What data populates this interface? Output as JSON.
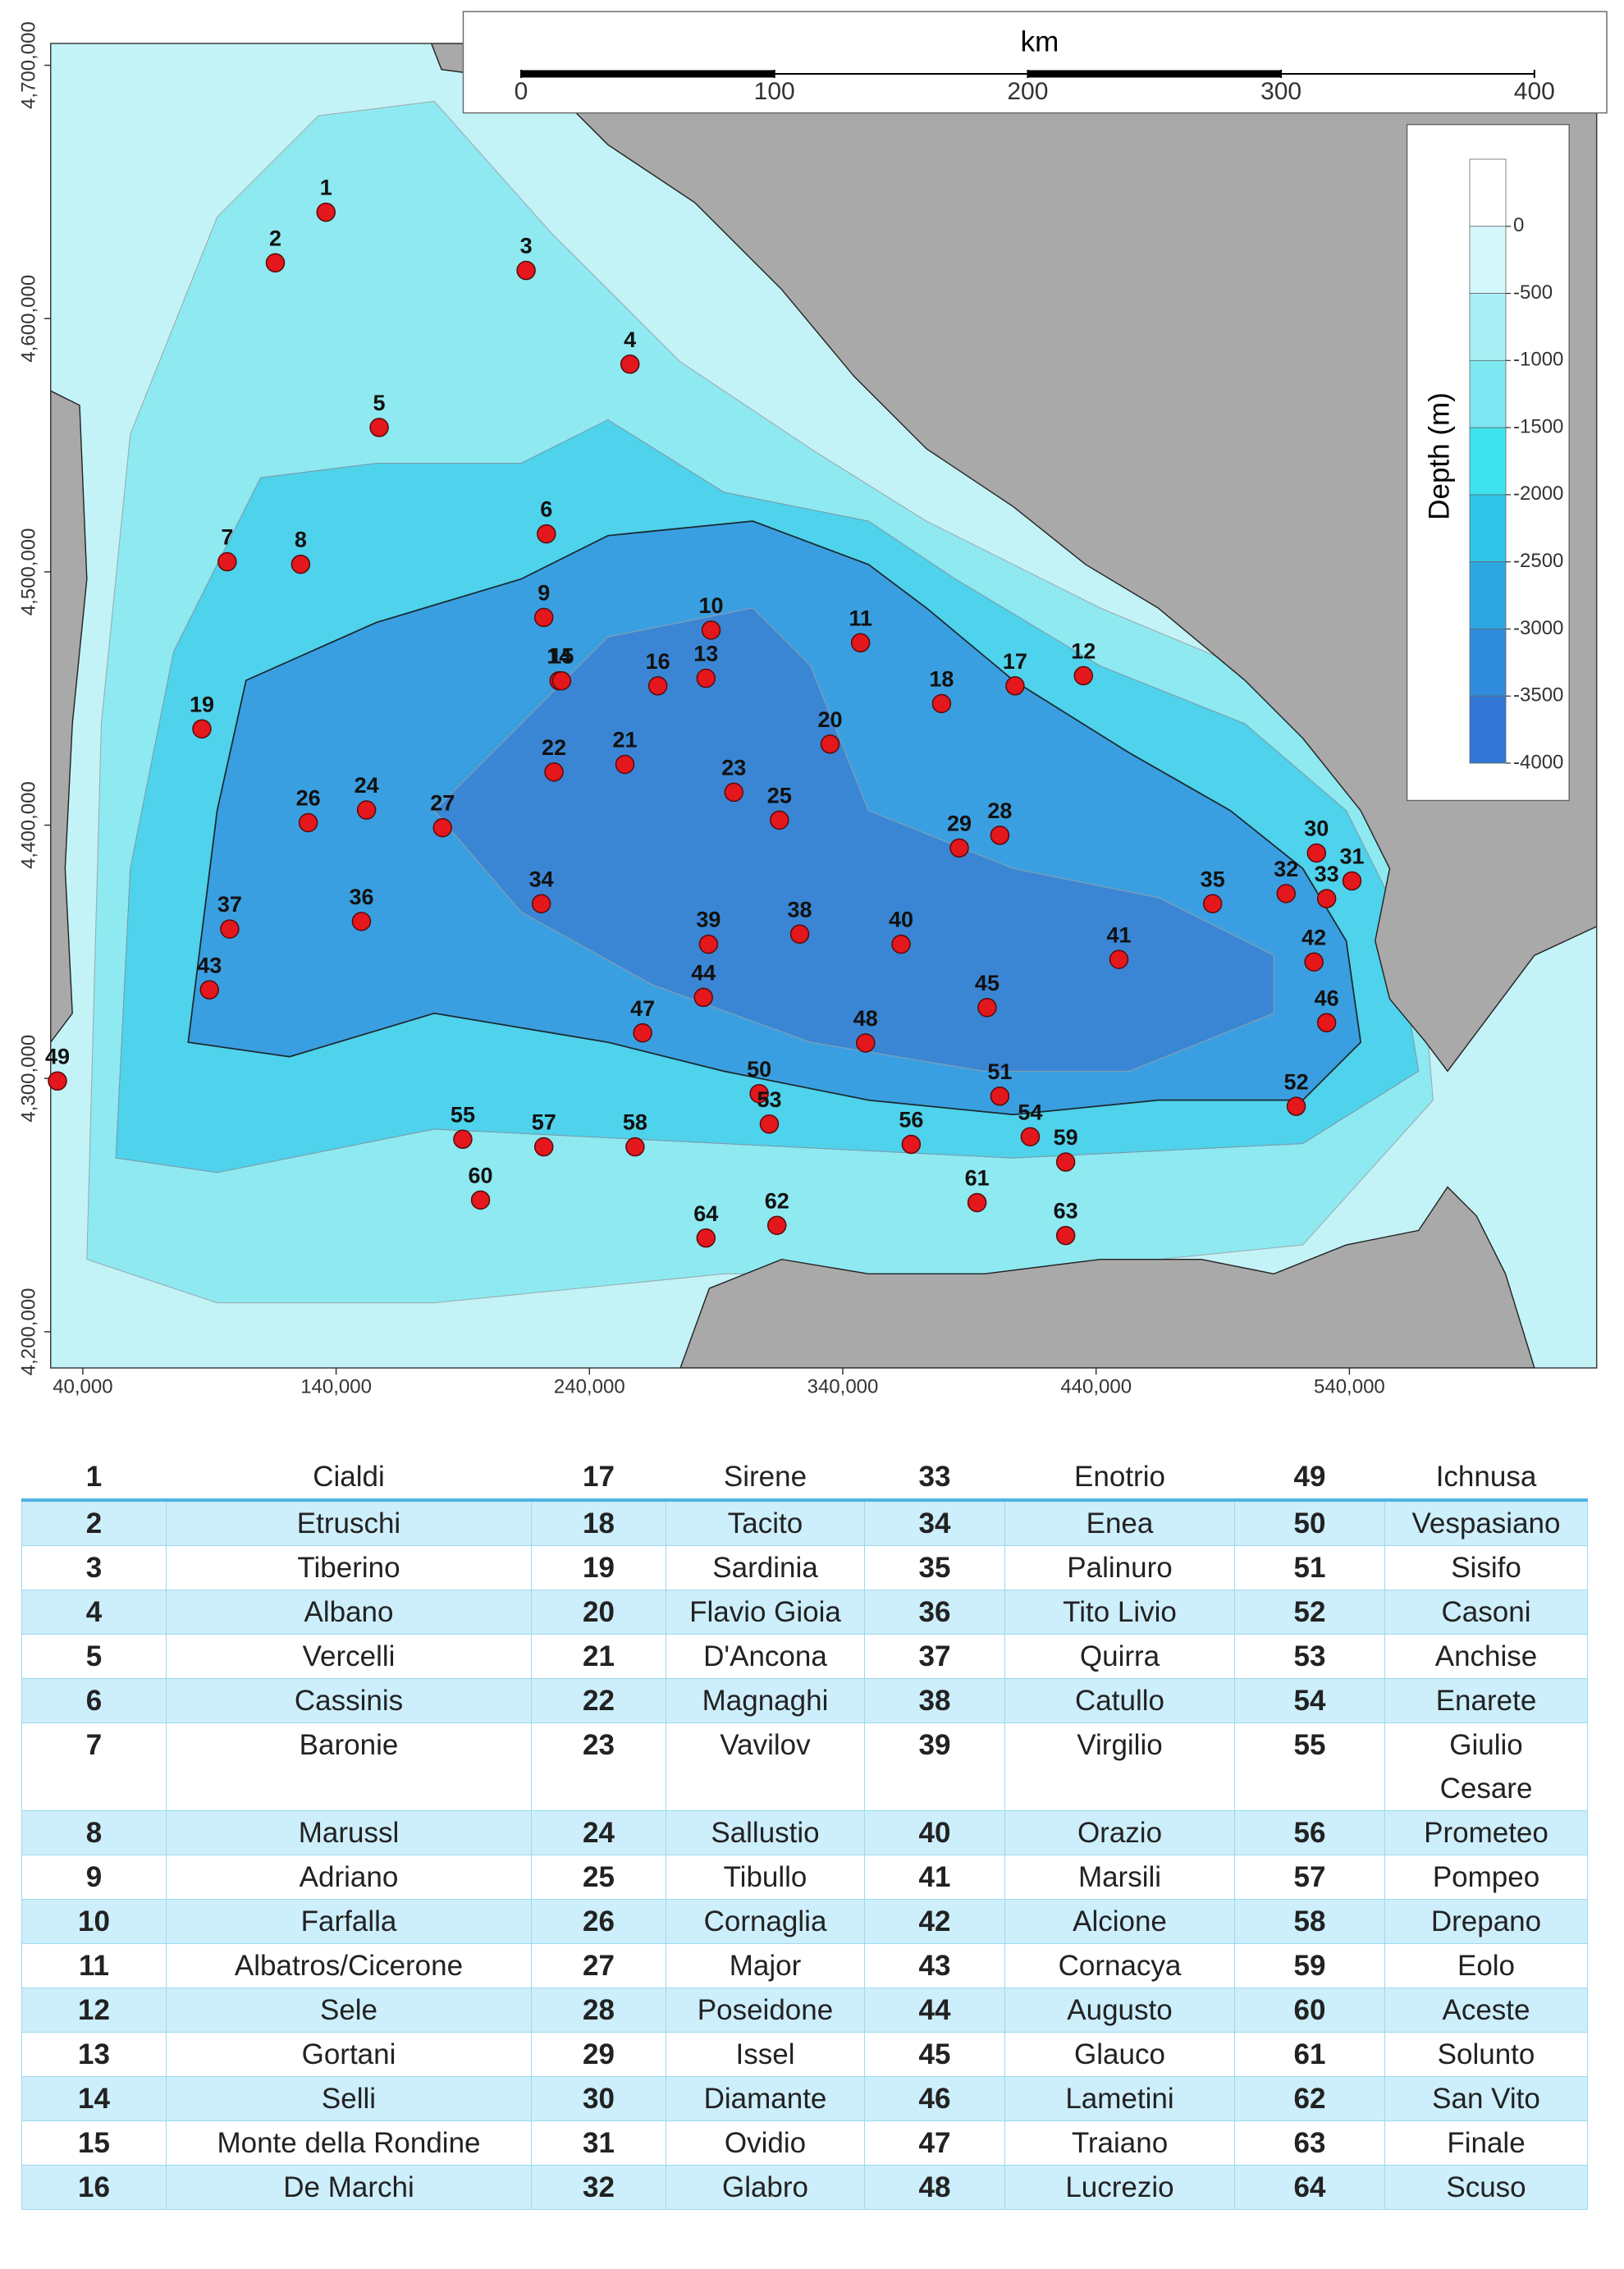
{
  "map": {
    "xlim": [
      27400,
      637700
    ],
    "ylim": [
      4185700,
      4708600
    ],
    "xticks": [
      {
        "value": 40000,
        "label": "40,000"
      },
      {
        "value": 140000,
        "label": "140,000"
      },
      {
        "value": 240000,
        "label": "240,000"
      },
      {
        "value": 340000,
        "label": "340,000"
      },
      {
        "value": 440000,
        "label": "440,000"
      },
      {
        "value": 540000,
        "label": "540,000"
      }
    ],
    "yticks": [
      {
        "value": 4200000,
        "label": "4,200,000"
      },
      {
        "value": 4300000,
        "label": "4,300,000"
      },
      {
        "value": 4400000,
        "label": "4,400,000"
      },
      {
        "value": 4500000,
        "label": "4,500,000"
      },
      {
        "value": 4600000,
        "label": "4,600,000"
      },
      {
        "value": 4700000,
        "label": "4,700,000"
      }
    ],
    "marker_color": "#e3171c",
    "points": [
      {
        "id": 1,
        "x": 136000,
        "y": 4642000
      },
      {
        "id": 2,
        "x": 116000,
        "y": 4622000
      },
      {
        "id": 3,
        "x": 215000,
        "y": 4619000
      },
      {
        "id": 4,
        "x": 256000,
        "y": 4582000
      },
      {
        "id": 5,
        "x": 157000,
        "y": 4557000
      },
      {
        "id": 6,
        "x": 223000,
        "y": 4515000
      },
      {
        "id": 7,
        "x": 97000,
        "y": 4504000
      },
      {
        "id": 8,
        "x": 126000,
        "y": 4503000
      },
      {
        "id": 9,
        "x": 222000,
        "y": 4482000
      },
      {
        "id": 10,
        "x": 288000,
        "y": 4477000
      },
      {
        "id": 11,
        "x": 347000,
        "y": 4472000
      },
      {
        "id": 12,
        "x": 435000,
        "y": 4459000
      },
      {
        "id": 13,
        "x": 286000,
        "y": 4458000
      },
      {
        "id": 14,
        "x": 228000,
        "y": 4457000
      },
      {
        "id": 15,
        "x": 229000,
        "y": 4457000
      },
      {
        "id": 16,
        "x": 267000,
        "y": 4455000
      },
      {
        "id": 17,
        "x": 408000,
        "y": 4455000
      },
      {
        "id": 18,
        "x": 379000,
        "y": 4448000
      },
      {
        "id": 19,
        "x": 87000,
        "y": 4438000
      },
      {
        "id": 20,
        "x": 335000,
        "y": 4432000
      },
      {
        "id": 21,
        "x": 254000,
        "y": 4424000
      },
      {
        "id": 22,
        "x": 226000,
        "y": 4421000
      },
      {
        "id": 23,
        "x": 297000,
        "y": 4413000
      },
      {
        "id": 24,
        "x": 152000,
        "y": 4406000
      },
      {
        "id": 25,
        "x": 315000,
        "y": 4402000
      },
      {
        "id": 26,
        "x": 129000,
        "y": 4401000
      },
      {
        "id": 27,
        "x": 182000,
        "y": 4399000
      },
      {
        "id": 28,
        "x": 402000,
        "y": 4396000
      },
      {
        "id": 29,
        "x": 386000,
        "y": 4391000
      },
      {
        "id": 30,
        "x": 527000,
        "y": 4389000
      },
      {
        "id": 31,
        "x": 541000,
        "y": 4378000
      },
      {
        "id": 32,
        "x": 515000,
        "y": 4373000
      },
      {
        "id": 33,
        "x": 531000,
        "y": 4371000
      },
      {
        "id": 34,
        "x": 221000,
        "y": 4369000
      },
      {
        "id": 35,
        "x": 486000,
        "y": 4369000
      },
      {
        "id": 36,
        "x": 150000,
        "y": 4362000
      },
      {
        "id": 37,
        "x": 98000,
        "y": 4359000
      },
      {
        "id": 38,
        "x": 323000,
        "y": 4357000
      },
      {
        "id": 39,
        "x": 287000,
        "y": 4353000
      },
      {
        "id": 40,
        "x": 363000,
        "y": 4353000
      },
      {
        "id": 41,
        "x": 449000,
        "y": 4347000
      },
      {
        "id": 42,
        "x": 526000,
        "y": 4346000
      },
      {
        "id": 43,
        "x": 90000,
        "y": 4335000
      },
      {
        "id": 44,
        "x": 285000,
        "y": 4332000
      },
      {
        "id": 45,
        "x": 397000,
        "y": 4328000
      },
      {
        "id": 46,
        "x": 531000,
        "y": 4322000
      },
      {
        "id": 47,
        "x": 261000,
        "y": 4318000
      },
      {
        "id": 48,
        "x": 349000,
        "y": 4314000
      },
      {
        "id": 49,
        "x": 30000,
        "y": 4299000
      },
      {
        "id": 50,
        "x": 307000,
        "y": 4294000
      },
      {
        "id": 51,
        "x": 402000,
        "y": 4293000
      },
      {
        "id": 52,
        "x": 519000,
        "y": 4289000
      },
      {
        "id": 53,
        "x": 311000,
        "y": 4282000
      },
      {
        "id": 54,
        "x": 414000,
        "y": 4277000
      },
      {
        "id": 55,
        "x": 190000,
        "y": 4276000
      },
      {
        "id": 56,
        "x": 367000,
        "y": 4274000
      },
      {
        "id": 57,
        "x": 222000,
        "y": 4273000
      },
      {
        "id": 58,
        "x": 258000,
        "y": 4273000
      },
      {
        "id": 59,
        "x": 428000,
        "y": 4267000
      },
      {
        "id": 60,
        "x": 197000,
        "y": 4252000
      },
      {
        "id": 61,
        "x": 393000,
        "y": 4251000
      },
      {
        "id": 62,
        "x": 314000,
        "y": 4242000
      },
      {
        "id": 63,
        "x": 428000,
        "y": 4238000
      },
      {
        "id": 64,
        "x": 286000,
        "y": 4237000
      }
    ]
  },
  "scale_bar": {
    "title": "km",
    "ticks": [
      0,
      100,
      200,
      300,
      400
    ]
  },
  "legend": {
    "title": "Depth (m)",
    "ticks": [
      0,
      -500,
      -1000,
      -1500,
      -2000,
      -2500,
      -3000,
      -3500,
      -4000
    ],
    "colors": [
      "#ffffff",
      "#d3f7fa",
      "#a8eff5",
      "#7de8f1",
      "#3fe3ee",
      "#2fc4e8",
      "#2ea6e2",
      "#2f8cdc",
      "#3277d5"
    ]
  },
  "table": {
    "rows": [
      [
        1,
        "Cialdi",
        17,
        "Sirene",
        33,
        "Enotrio",
        49,
        "Ichnusa"
      ],
      [
        2,
        "Etruschi",
        18,
        "Tacito",
        34,
        "Enea",
        50,
        "Vespasiano"
      ],
      [
        3,
        "Tiberino",
        19,
        "Sardinia",
        35,
        "Palinuro",
        51,
        "Sisifo"
      ],
      [
        4,
        "Albano",
        20,
        "Flavio Gioia",
        36,
        "Tito Livio",
        52,
        "Casoni"
      ],
      [
        5,
        "Vercelli",
        21,
        "D'Ancona",
        37,
        "Quirra",
        53,
        "Anchise"
      ],
      [
        6,
        "Cassinis",
        22,
        "Magnaghi",
        38,
        "Catullo",
        54,
        "Enarete"
      ],
      [
        7,
        "Baronie",
        23,
        "Vavilov",
        39,
        "Virgilio",
        55,
        "Giulio Cesare"
      ],
      [
        8,
        "Marussl",
        24,
        "Sallustio",
        40,
        "Orazio",
        56,
        "Prometeo"
      ],
      [
        9,
        "Adriano",
        25,
        "Tibullo",
        41,
        "Marsili",
        57,
        "Pompeo"
      ],
      [
        10,
        "Farfalla",
        26,
        "Cornaglia",
        42,
        "Alcione",
        58,
        "Drepano"
      ],
      [
        11,
        "Albatros/Cicerone",
        27,
        "Major",
        43,
        "Cornacya",
        59,
        "Eolo"
      ],
      [
        12,
        "Sele",
        28,
        "Poseidone",
        44,
        "Augusto",
        60,
        "Aceste"
      ],
      [
        13,
        "Gortani",
        29,
        "Issel",
        45,
        "Glauco",
        61,
        "Solunto"
      ],
      [
        14,
        "Selli",
        30,
        "Diamante",
        46,
        "Lametini",
        62,
        "San Vito"
      ],
      [
        15,
        "Monte della Rondine",
        31,
        "Ovidio",
        47,
        "Traiano",
        63,
        "Finale"
      ],
      [
        16,
        "De Marchi",
        32,
        "Glabro",
        48,
        "Lucrezio",
        64,
        "Scuso"
      ]
    ]
  }
}
